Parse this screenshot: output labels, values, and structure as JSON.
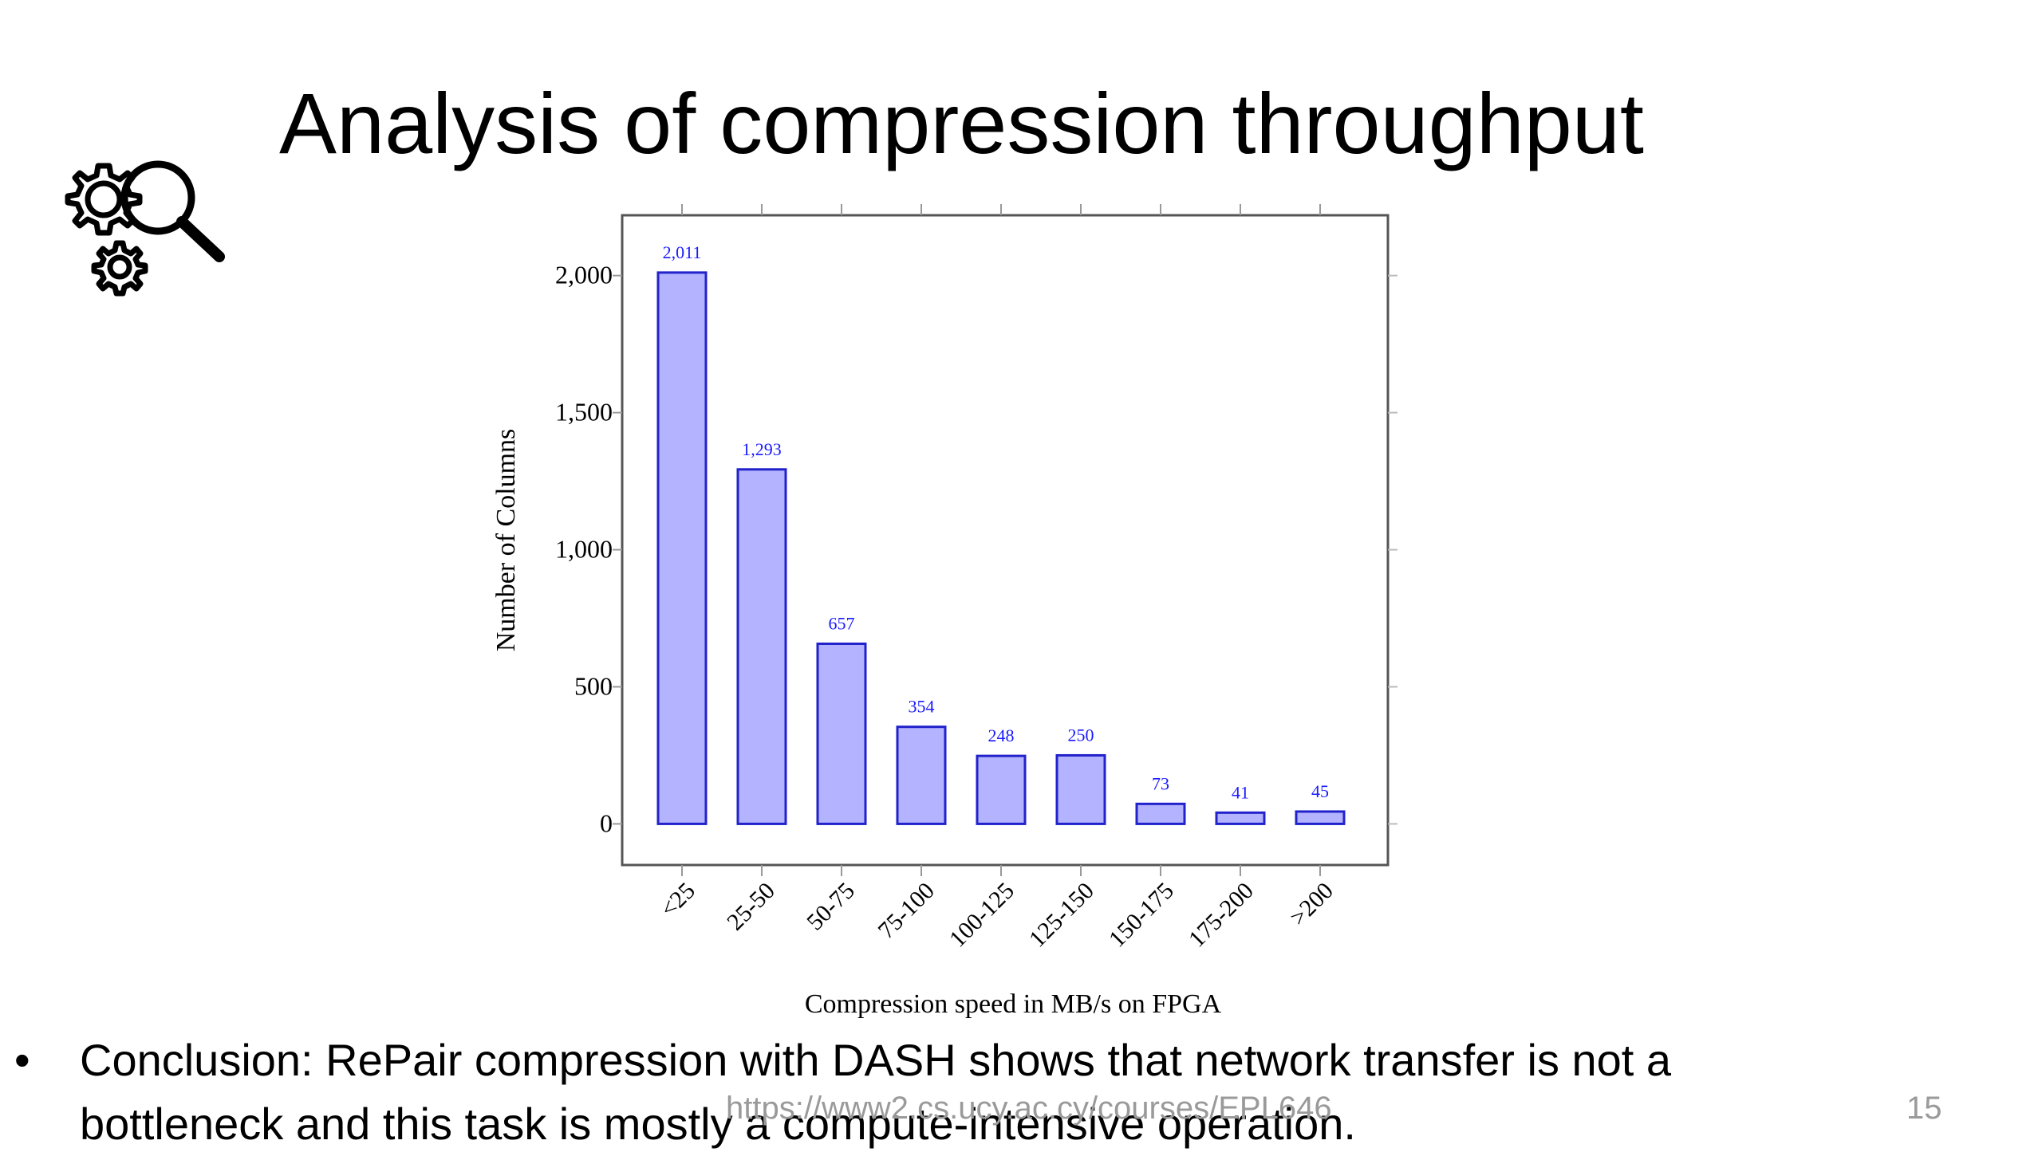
{
  "slide": {
    "title": "Analysis of compression throughput",
    "bullet": "•",
    "conclusion": "Conclusion: RePair compression with DASH shows that network transfer is not a bottleneck and this task is mostly a compute-intensive operation.",
    "footer_url": "https://www2.cs.ucy.ac.cy/courses/EPL646",
    "page_number": "15",
    "logo_icon": "gears-magnifier-icon"
  },
  "chart_data": {
    "type": "bar",
    "title": "",
    "xlabel": "Compression speed in MB/s on FPGA",
    "ylabel": "Number of Columns",
    "categories": [
      "<25",
      "25-50",
      "50-75",
      "75-100",
      "100-125",
      "125-150",
      "150-175",
      "175-200",
      ">200"
    ],
    "values": [
      2011,
      1293,
      657,
      354,
      248,
      250,
      73,
      41,
      45
    ],
    "value_labels": [
      "2,011",
      "1,293",
      "657",
      "354",
      "248",
      "250",
      "73",
      "41",
      "45"
    ],
    "yticks": [
      0,
      500,
      1000,
      1500,
      2000
    ],
    "ytick_labels": [
      "0",
      "500",
      "1,000",
      "1,500",
      "2,000"
    ],
    "ylim": [
      -150,
      2220
    ],
    "colors": {
      "bar_fill": "#b3b3ff",
      "bar_stroke": "#2222cc",
      "label": "#1a1aff"
    },
    "grid": false,
    "legend": "none"
  }
}
